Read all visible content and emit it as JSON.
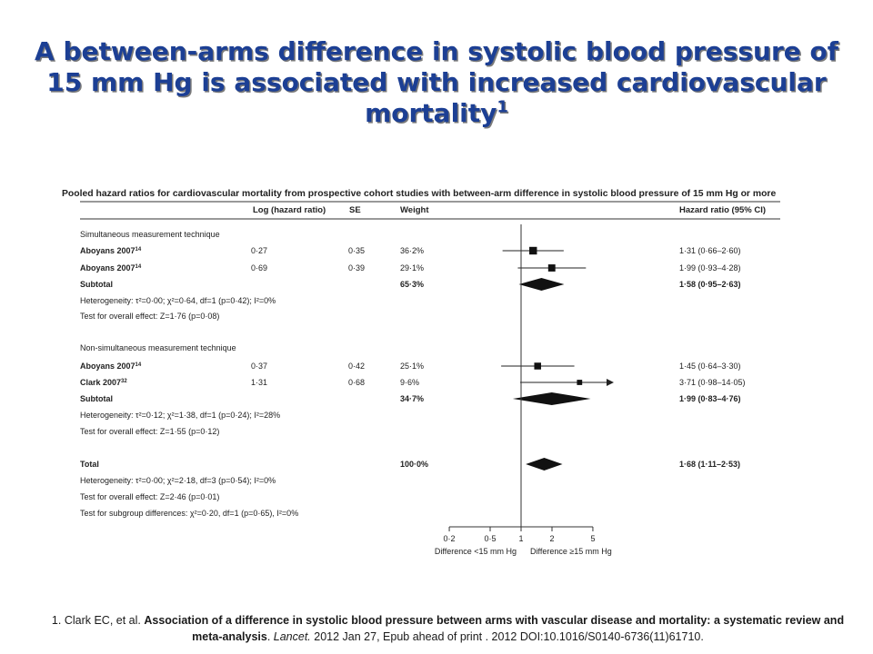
{
  "slide": {
    "title": "A between-arms difference in systolic blood pressure of 15 mm Hg is associated with increased cardiovascular mortality",
    "title_sup": "1"
  },
  "footnote": {
    "prefix": "1. Clark EC, et al. ",
    "article": "Association of a difference in systolic blood pressure between arms with vascular disease and mortality: a systematic review and meta-analysis",
    "sep1": ". ",
    "journal": "Lancet.",
    "rest": " 2012 Jan 27, Epub ahead of print . 2012 DOI:10.1016/S0140-6736(11)61710."
  },
  "chart_data": {
    "type": "forest",
    "title": "Pooled hazard ratios for cardiovascular mortality from prospective cohort studies with between-arm difference in systolic blood pressure of 15 mm Hg or more",
    "columns": {
      "log_hr": "Log (hazard ratio)",
      "se": "SE",
      "weight": "Weight",
      "hr_ci": "Hazard ratio (95% CI)"
    },
    "x_axis": {
      "scale": "log",
      "range": [
        0.2,
        5
      ],
      "ticks": [
        0.2,
        0.5,
        1,
        2,
        5
      ],
      "tick_labels": [
        "0·2",
        "0·5",
        "1",
        "2",
        "5"
      ],
      "left_label": "Difference <15 mm Hg",
      "right_label": "Difference ≥15 mm Hg"
    },
    "rows": [
      {
        "kind": "header",
        "label": "Simultaneous measurement technique"
      },
      {
        "kind": "study",
        "label": "Aboyans 2007",
        "ref": "14",
        "log_hr": "0·27",
        "se": "0·35",
        "weight": "36·2%",
        "hr_ci": "1·31 (0·66–2·60)",
        "hr": 1.31,
        "lo": 0.66,
        "hi": 2.6,
        "w": 36.2
      },
      {
        "kind": "study",
        "label": "Aboyans 2007",
        "ref": "14",
        "log_hr": "0·69",
        "se": "0·39",
        "weight": "29·1%",
        "hr_ci": "1·99 (0·93–4·28)",
        "hr": 1.99,
        "lo": 0.93,
        "hi": 4.28,
        "w": 29.1
      },
      {
        "kind": "subtotal",
        "label": "Subtotal",
        "weight": "65·3%",
        "hr_ci": "1·58 (0·95–2·63)",
        "hr": 1.58,
        "lo": 0.95,
        "hi": 2.63
      },
      {
        "kind": "note",
        "label": "Heterogeneity: τ²=0·00; χ²=0·64, df=1 (p=0·42); I²=0%"
      },
      {
        "kind": "note",
        "label": "Test for overall effect: Z=1·76 (p=0·08)"
      },
      {
        "kind": "header",
        "label": "Non-simultaneous measurement technique"
      },
      {
        "kind": "study",
        "label": "Aboyans 2007",
        "ref": "14",
        "log_hr": "0·37",
        "se": "0·42",
        "weight": "25·1%",
        "hr_ci": "1·45 (0·64–3·30)",
        "hr": 1.45,
        "lo": 0.64,
        "hi": 3.3,
        "w": 25.1
      },
      {
        "kind": "study",
        "label": "Clark 2007",
        "ref": "32",
        "log_hr": "1·31",
        "se": "0·68",
        "weight": "9·6%",
        "hr_ci": "3·71 (0·98–14·05)",
        "hr": 3.71,
        "lo": 0.98,
        "hi": 14.05,
        "w": 9.6,
        "arrow": true
      },
      {
        "kind": "subtotal",
        "label": "Subtotal",
        "weight": "34·7%",
        "hr_ci": "1·99 (0·83–4·76)",
        "hr": 1.99,
        "lo": 0.83,
        "hi": 4.76
      },
      {
        "kind": "note",
        "label": "Heterogeneity: τ²=0·12; χ²=1·38, df=1 (p=0·24); I²=28%"
      },
      {
        "kind": "note",
        "label": "Test for overall effect: Z=1·55 (p=0·12)"
      },
      {
        "kind": "total",
        "label": "Total",
        "weight": "100·0%",
        "hr_ci": "1·68 (1·11–2·53)",
        "hr": 1.68,
        "lo": 1.11,
        "hi": 2.53
      },
      {
        "kind": "note",
        "label": "Heterogeneity: τ²=0·00; χ²=2·18, df=3 (p=0·54); I²=0%"
      },
      {
        "kind": "note",
        "label": "Test for overall effect: Z=2·46 (p=0·01)"
      },
      {
        "kind": "note",
        "label": "Test for subgroup differences: χ²=0·20, df=1 (p=0·65), I²=0%"
      }
    ]
  }
}
